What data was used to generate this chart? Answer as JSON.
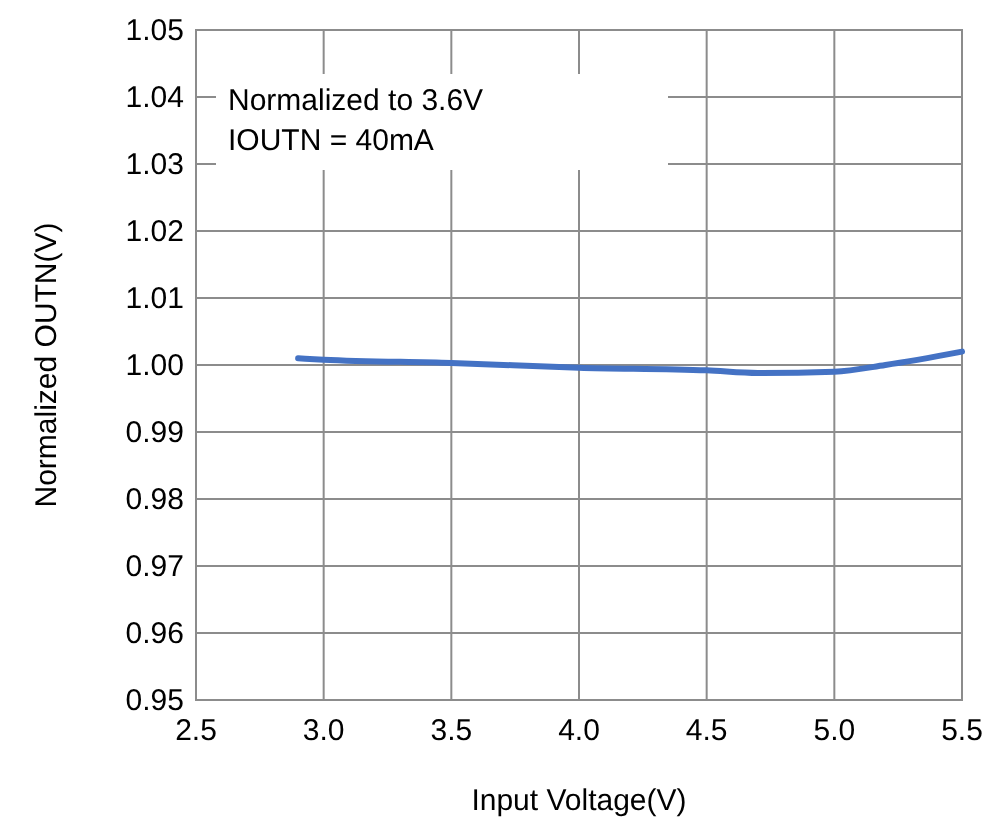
{
  "chart_data": {
    "type": "line",
    "xlabel": "Input Voltage(V)",
    "ylabel": "Normalized OUTN(V)",
    "annotations": [
      "Normalized to 3.6V",
      "IOUTN = 40mA"
    ],
    "xlim": [
      2.5,
      5.5
    ],
    "xticks": [
      {
        "value": 2.5,
        "label": "2.5"
      },
      {
        "value": 3,
        "label": "3.0"
      },
      {
        "value": 3.5,
        "label": "3.5"
      },
      {
        "value": 4,
        "label": "4.0"
      },
      {
        "value": 4.5,
        "label": "4.5"
      },
      {
        "value": 5,
        "label": "5.0"
      },
      {
        "value": 5.5,
        "label": "5.5"
      }
    ],
    "ylim": [
      0.95,
      1.05
    ],
    "yticks": [
      {
        "value": 0.95,
        "label": "0.95"
      },
      {
        "value": 0.96,
        "label": "0.96"
      },
      {
        "value": 0.97,
        "label": "0.97"
      },
      {
        "value": 0.98,
        "label": "0.98"
      },
      {
        "value": 0.99,
        "label": "0.99"
      },
      {
        "value": 1,
        "label": "1.00"
      },
      {
        "value": 1.01,
        "label": "1.01"
      },
      {
        "value": 1.02,
        "label": "1.02"
      },
      {
        "value": 1.03,
        "label": "1.03"
      },
      {
        "value": 1.04,
        "label": "1.04"
      },
      {
        "value": 1.05,
        "label": "1.05"
      }
    ],
    "grid": true,
    "marker": "none",
    "line_style": "solid",
    "series": [
      {
        "color": "#4472c4",
        "x": [
          2.9,
          3.0,
          3.5,
          4.0,
          4.5,
          4.7,
          5.0,
          5.2,
          5.5
        ],
        "values": [
          1.001,
          1.0008,
          1.0003,
          0.9996,
          0.9992,
          0.9988,
          0.999,
          1.0,
          1.002
        ]
      }
    ]
  }
}
